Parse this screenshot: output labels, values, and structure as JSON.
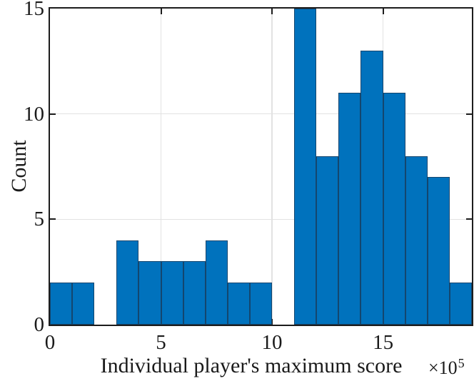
{
  "figure": {
    "background": "#ffffff"
  },
  "chart_data": {
    "type": "bar",
    "subtype": "histogram",
    "title": "",
    "xlabel": "Individual player's maximum score",
    "ylabel": "Count",
    "x_offset": {
      "prefix": "×10",
      "exponent": "5"
    },
    "bin_width_e5": 1,
    "first_bin_start_e5": 0,
    "bin_edges_e5": [
      0,
      1,
      2,
      3,
      4,
      5,
      6,
      7,
      8,
      9,
      10,
      11,
      12,
      13,
      14,
      15,
      16,
      17,
      18,
      19
    ],
    "counts": [
      2,
      2,
      0,
      4,
      3,
      3,
      3,
      4,
      2,
      2,
      0,
      15,
      8,
      11,
      13,
      11,
      8,
      7,
      2
    ],
    "xlim_e5": [
      0,
      19
    ],
    "ylim": [
      0,
      15
    ],
    "x_ticks": [
      0,
      5,
      10,
      15
    ],
    "y_ticks": [
      0,
      5,
      10,
      15
    ],
    "grid": true,
    "legend": null,
    "colors": {
      "bar_fill": "#0072bd",
      "bar_edge": "#14466e",
      "axis": "#1c1c1c",
      "grid": "#e2e2e2",
      "text": "#1a1a1a"
    }
  }
}
